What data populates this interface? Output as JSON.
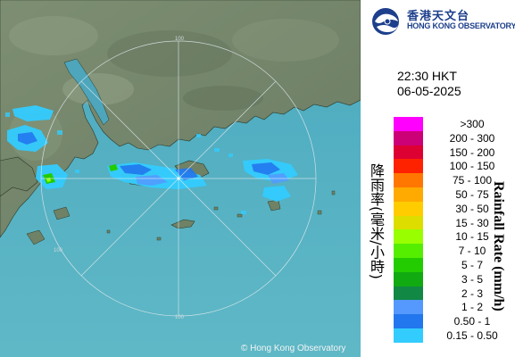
{
  "organization": {
    "name_zh": "香港天文台",
    "name_en": "HONG KONG OBSERVATORY"
  },
  "timestamp": {
    "time": "22:30 HKT",
    "date": "06-05-2025"
  },
  "legend": {
    "title_zh": "降雨率(毫米/小時)",
    "title_en": "Rainfall Rate (mm/h)",
    "classes": [
      {
        "label": ">300",
        "color": "#ff00ff"
      },
      {
        "label": "200 - 300",
        "color": "#cc0077"
      },
      {
        "label": "150 - 200",
        "color": "#dd0033"
      },
      {
        "label": "100 - 150",
        "color": "#ff2200"
      },
      {
        "label": "75 - 100",
        "color": "#ff7700"
      },
      {
        "label": "50 - 75",
        "color": "#ffaa00"
      },
      {
        "label": "30 - 50",
        "color": "#ffcc00"
      },
      {
        "label": "15 - 30",
        "color": "#dddd00"
      },
      {
        "label": "10 - 15",
        "color": "#99ff00"
      },
      {
        "label": "7 - 10",
        "color": "#55ee00"
      },
      {
        "label": "5 - 7",
        "color": "#22cc00"
      },
      {
        "label": "3 - 5",
        "color": "#11aa11"
      },
      {
        "label": "2 - 3",
        "color": "#118844"
      },
      {
        "label": "1 - 2",
        "color": "#5599ff"
      },
      {
        "label": "0.50 - 1",
        "color": "#2277ee"
      },
      {
        "label": "0.15 - 0.50",
        "color": "#33ccff"
      }
    ]
  },
  "range_rings": {
    "label": "100"
  },
  "copyright": "© Hong Kong Observatory"
}
